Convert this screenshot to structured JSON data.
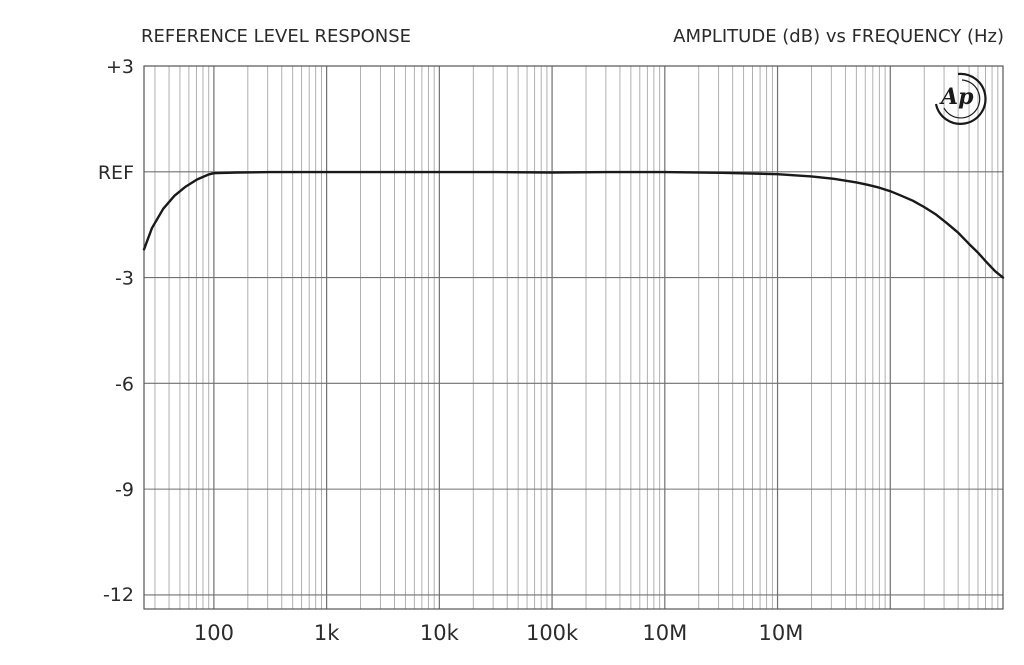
{
  "chart_data": {
    "type": "line",
    "title": "REFERENCE LEVEL RESPONSE",
    "subtitle": "AMPLITUDE (dB) vs FREQUENCY (Hz)",
    "xlabel": "",
    "ylabel": "",
    "x_scale": "log",
    "x_decades": 6,
    "x_tick_labels": [
      "100",
      "1k",
      "10k",
      "100k",
      "10M",
      "10M"
    ],
    "y_ticks": [
      {
        "value": 3,
        "label": "+3"
      },
      {
        "value": 0,
        "label": "REF"
      },
      {
        "value": -3,
        "label": "-3"
      },
      {
        "value": -6,
        "label": "-6"
      },
      {
        "value": -9,
        "label": "-9"
      },
      {
        "value": -12,
        "label": "-12"
      }
    ],
    "ylim": [
      -12.4,
      3
    ],
    "grid": true,
    "series": [
      {
        "color": "#1a1a1a",
        "x_decade": [
          -0.62,
          -0.55,
          -0.45,
          -0.35,
          -0.25,
          -0.15,
          -0.05,
          0.0,
          0.2,
          0.5,
          1.0,
          1.5,
          2.0,
          2.5,
          3.0,
          3.5,
          4.0,
          4.5,
          5.0,
          5.3,
          5.5,
          5.7,
          5.8,
          5.9,
          6.0,
          6.1,
          6.2,
          6.3,
          6.4,
          6.5,
          6.6,
          6.7,
          6.78,
          6.85,
          6.93,
          7.0
        ],
        "y": [
          -2.2,
          -1.6,
          -1.05,
          -0.68,
          -0.42,
          -0.22,
          -0.08,
          -0.04,
          -0.02,
          -0.01,
          -0.01,
          -0.01,
          -0.01,
          -0.01,
          -0.02,
          -0.01,
          -0.01,
          -0.03,
          -0.07,
          -0.13,
          -0.2,
          -0.3,
          -0.37,
          -0.45,
          -0.55,
          -0.68,
          -0.82,
          -1.0,
          -1.2,
          -1.45,
          -1.72,
          -2.05,
          -2.3,
          -2.55,
          -2.82,
          -3.0
        ]
      }
    ]
  },
  "logo": {
    "text": "Ap"
  }
}
